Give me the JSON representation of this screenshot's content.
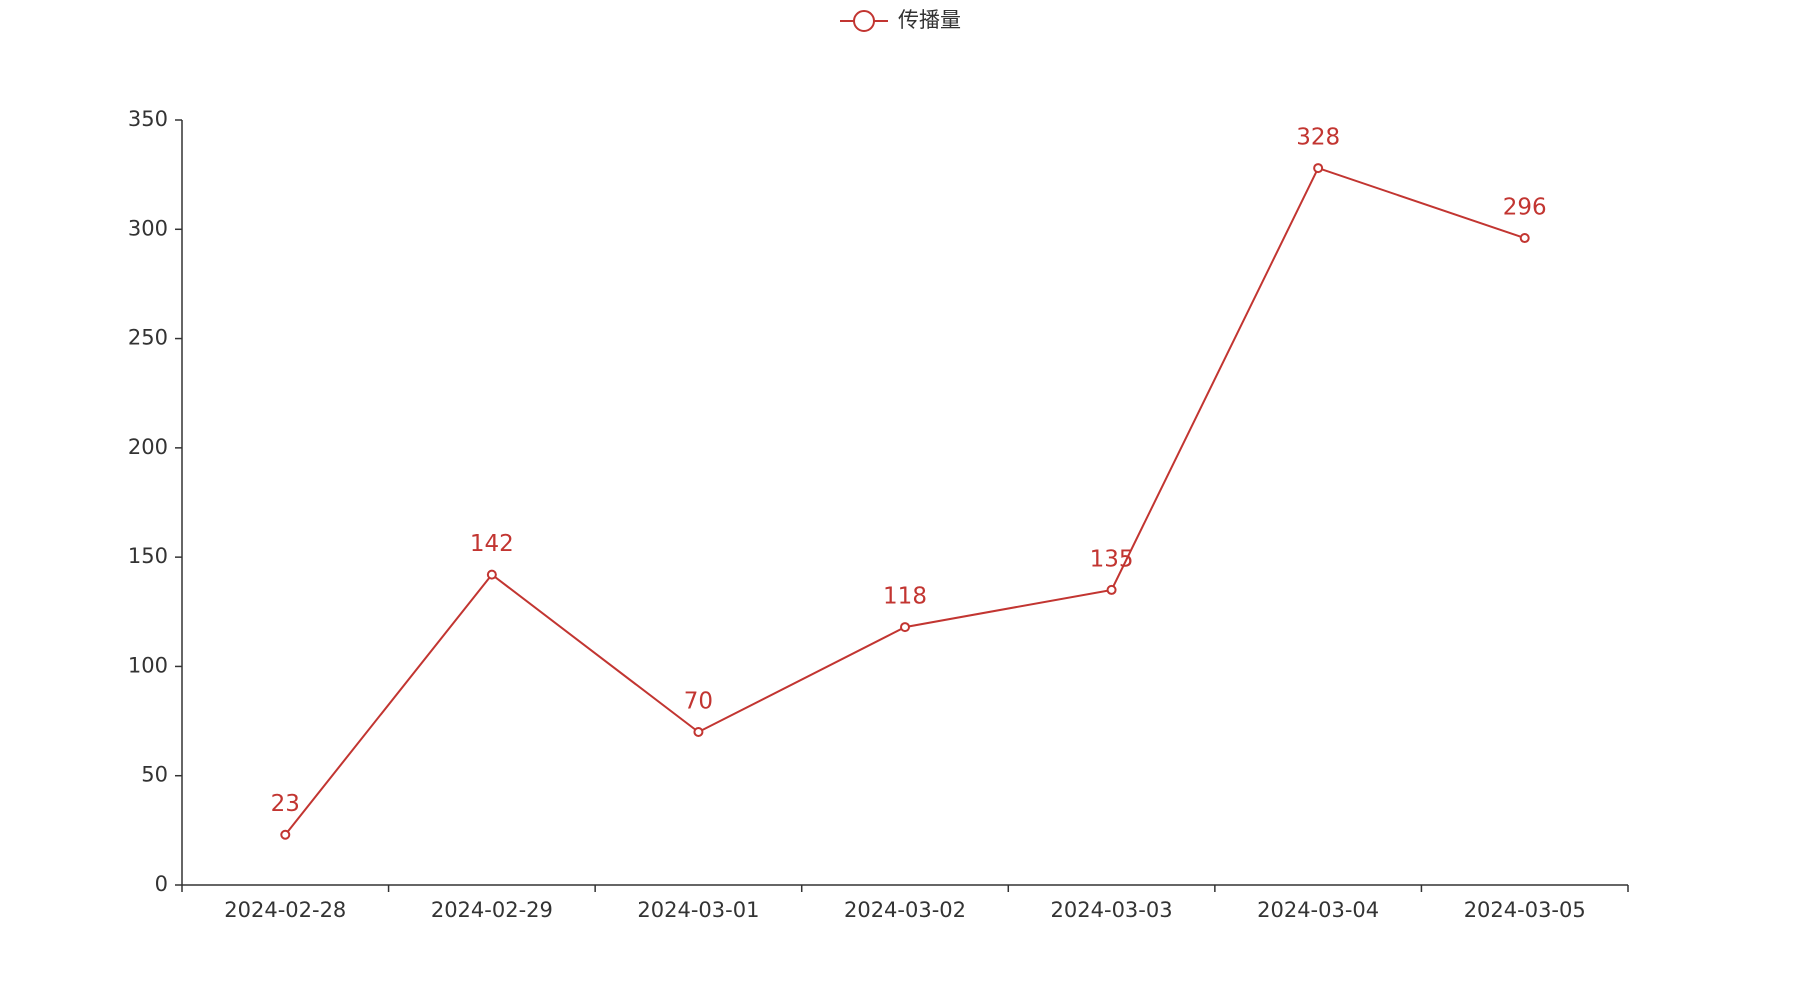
{
  "chart_data": {
    "type": "line",
    "categories": [
      "2024-02-28",
      "2024-02-29",
      "2024-03-01",
      "2024-03-02",
      "2024-03-03",
      "2024-03-04",
      "2024-03-05"
    ],
    "series": [
      {
        "name": "传播量",
        "color": "#c23531",
        "values": [
          23,
          142,
          70,
          118,
          135,
          328,
          296
        ]
      }
    ],
    "ylim": [
      0,
      350
    ],
    "yticks": [
      0,
      50,
      100,
      150,
      200,
      250,
      300,
      350
    ],
    "grid": false,
    "legend": "top",
    "data_labels": true
  }
}
